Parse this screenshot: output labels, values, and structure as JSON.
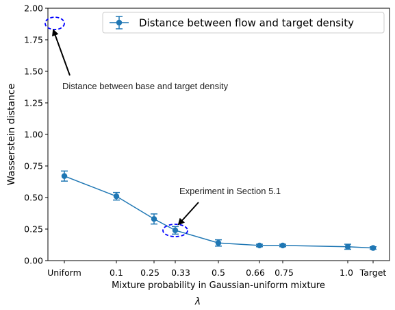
{
  "chart_data": {
    "type": "line",
    "ylabel": "Wasserstein distance",
    "xlabel": "Mixture probability in Gaussian-uniform mixture",
    "xlabel2": "λ",
    "ylim": [
      0.0,
      2.0
    ],
    "yticks": [
      "0.00",
      "0.25",
      "0.50",
      "0.75",
      "1.00",
      "1.25",
      "1.50",
      "1.75",
      "2.00"
    ],
    "xtick_labels": [
      "Uniform",
      "0.1",
      "0.25",
      "0.33",
      "0.5",
      "0.66",
      "0.75",
      "1.0",
      "Target"
    ],
    "series": [
      {
        "name": "Distance between flow and target density",
        "color": "#1f77b4",
        "points": [
          {
            "x": "Uniform",
            "y": 0.67,
            "err": 0.04
          },
          {
            "x": "0.1",
            "y": 0.51,
            "err": 0.03
          },
          {
            "x": "0.25",
            "y": 0.33,
            "err": 0.04
          },
          {
            "x": "0.33",
            "y": 0.24,
            "err": 0.03
          },
          {
            "x": "0.5",
            "y": 0.14,
            "err": 0.025
          },
          {
            "x": "0.66",
            "y": 0.12,
            "err": 0.01
          },
          {
            "x": "0.75",
            "y": 0.12,
            "err": 0.01
          },
          {
            "x": "1.0",
            "y": 0.11,
            "err": 0.02
          },
          {
            "x": "Target",
            "y": 0.1,
            "err": 0.01
          }
        ]
      }
    ],
    "legend": "top-right",
    "annotations": [
      {
        "text": "Distance between base and target density",
        "target_y": 1.88
      },
      {
        "text": "Experiment in Section 5.1",
        "target_y": 0.25
      }
    ],
    "highlight_color": "#0000ff"
  }
}
